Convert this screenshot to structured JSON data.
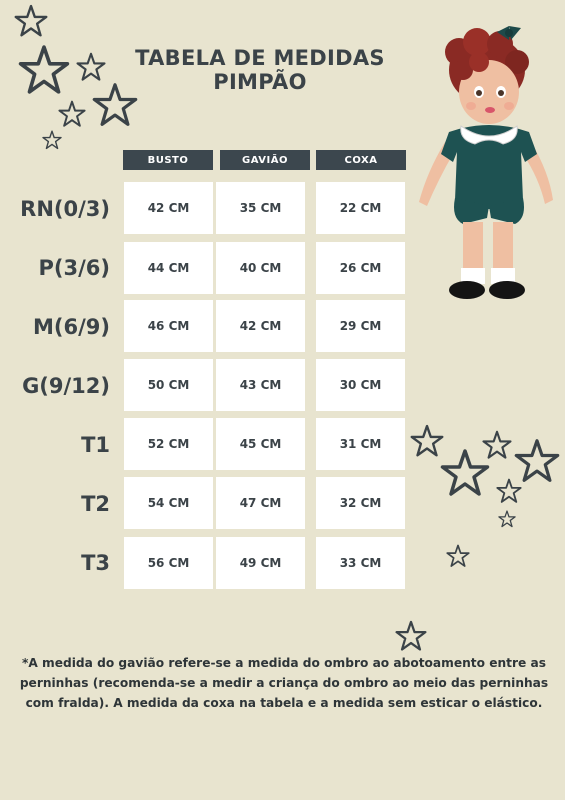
{
  "title": {
    "line1": "TABELA DE MEDIDAS",
    "line2": "PIMPÃO"
  },
  "columns": [
    "BUSTO",
    "GAVIÃO",
    "COXA"
  ],
  "rows": [
    {
      "size": "RN(0/3)",
      "busto": "42 CM",
      "gaviao": "35 CM",
      "coxa": "22 CM"
    },
    {
      "size": "P(3/6)",
      "busto": "44 CM",
      "gaviao": "40 CM",
      "coxa": "26 CM"
    },
    {
      "size": "M(6/9)",
      "busto": "46 CM",
      "gaviao": "42 CM",
      "coxa": "29 CM"
    },
    {
      "size": "G(9/12)",
      "busto": "50 CM",
      "gaviao": "43 CM",
      "coxa": "30 CM"
    },
    {
      "size": "T1",
      "busto": "52 CM",
      "gaviao": "45 CM",
      "coxa": "31 CM"
    },
    {
      "size": "T2",
      "busto": "54 CM",
      "gaviao": "47 CM",
      "coxa": "32 CM"
    },
    {
      "size": "T3",
      "busto": "56 CM",
      "gaviao": "49 CM",
      "coxa": "33 CM"
    }
  ],
  "footnote": "*A medida do gavião refere-se a medida do ombro ao abotoamento entre as perninhas (recomenda-se a medir a criança do ombro ao meio das perninhas com fralda). A medida da coxa na tabela e a medida sem esticar o elástico.",
  "colors": {
    "background": "#e8e4cf",
    "header": "#3c474e",
    "text": "#3b4348",
    "cell": "#ffffff"
  },
  "icons": [
    "star-icon",
    "doll-illustration"
  ]
}
